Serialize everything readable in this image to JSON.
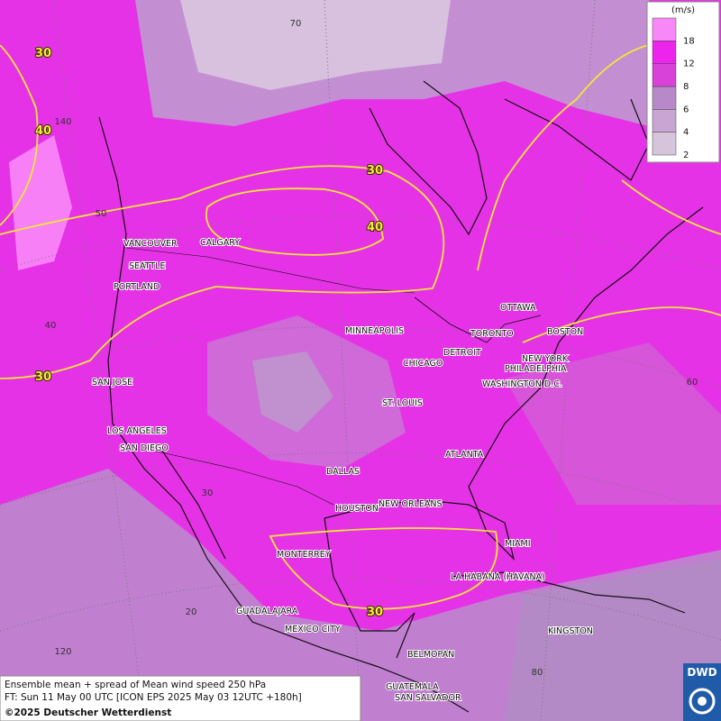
{
  "legend": {
    "unit": "(m/s)",
    "levels": [
      "2",
      "4",
      "6",
      "8",
      "12",
      "18"
    ],
    "colors": [
      "#d6c3dc",
      "#c7a6d3",
      "#b889c9",
      "#d842d8",
      "#ec24ec",
      "#f888f8"
    ]
  },
  "cities": [
    "VANCOUVER",
    "CALGARY",
    "SEATTLE",
    "PORTLAND",
    "MINNEAPOLIS",
    "OTTAWA",
    "TORONTO",
    "BOSTON",
    "DETROIT",
    "CHICAGO",
    "NEW YORK",
    "PHILADELPHIA",
    "WASHINGTON D.C.",
    "SAN JOSE",
    "ST. LOUIS",
    "LOS ANGELES",
    "SAN DIEGO",
    "ATLANTA",
    "DALLAS",
    "HOUSTON",
    "NEW ORLEANS",
    "MIAMI",
    "MONTERREY",
    "LA HABANA (HAVANA)",
    "GUADALAJARA",
    "MEXICO CITY",
    "KINGSTON",
    "BELMOPAN",
    "GUATEMALA",
    "SAN SALVADOR"
  ],
  "contour_labels": [
    "30",
    "40",
    "30",
    "40",
    "30",
    "30"
  ],
  "grid_labels": [
    "70",
    "140",
    "50",
    "40",
    "30",
    "20",
    "120",
    "60",
    "80"
  ],
  "caption": {
    "line1": "Ensemble mean + spread of Mean wind speed 250 hPa",
    "line2": "FT: Sun 11 May 00 UTC [ICON EPS 2025 May 03 12UTC +180h]",
    "line3": "©2025 Deutscher Wetterdienst"
  },
  "logo": "DWD"
}
